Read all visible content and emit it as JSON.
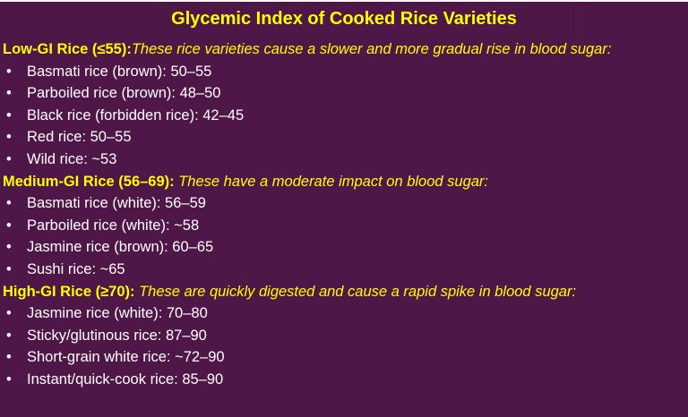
{
  "title": "Glycemic Index of Cooked Rice Varieties",
  "colors": {
    "background": "#4f1747",
    "heading": "#ffff00",
    "text": "#ffffff"
  },
  "sections": [
    {
      "label": "Low-GI Rice (≤55):",
      "description": "These rice varieties cause a slower and more gradual rise in blood sugar:",
      "items": [
        "Basmati rice (brown): 50–55",
        "Parboiled rice (brown): 48–50",
        "Black rice (forbidden rice): 42–45",
        "Red rice: 50–55",
        "Wild rice: ~53"
      ]
    },
    {
      "label": "Medium-GI Rice (56–69):",
      "description": " These have a moderate impact on blood sugar:",
      "items": [
        "Basmati rice (white): 56–59",
        "Parboiled rice (white): ~58",
        "Jasmine rice (brown): 60–65",
        "Sushi rice: ~65"
      ]
    },
    {
      "label": "High-GI Rice (≥70):",
      "description": " These are quickly digested and cause a rapid spike in blood sugar:",
      "items": [
        "Jasmine rice (white): 70–80",
        "Sticky/glutinous rice: 87–90",
        "Short-grain white rice: ~72–90",
        "Instant/quick-cook rice: 85–90"
      ]
    }
  ],
  "bullet": "•"
}
